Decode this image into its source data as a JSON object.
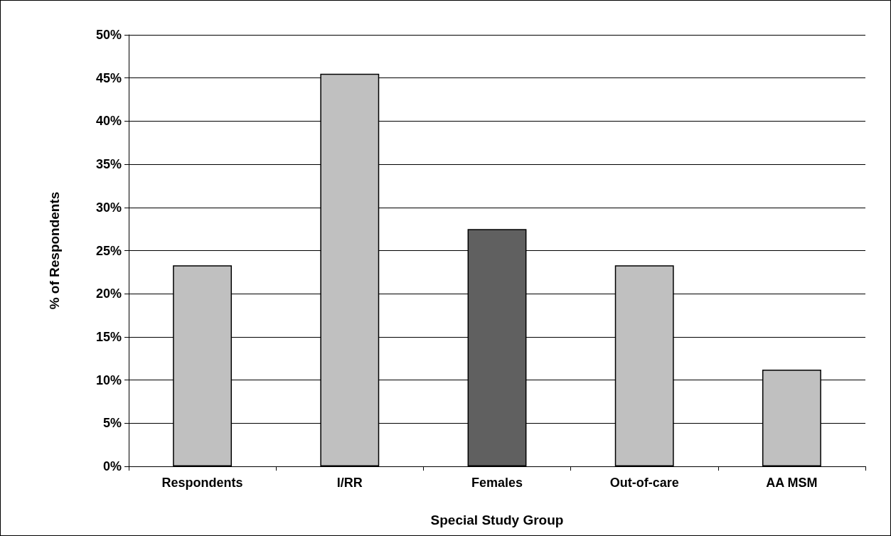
{
  "chart_data": {
    "type": "bar",
    "xlabel": "Special Study Group",
    "ylabel": "% of Respondents",
    "categories": [
      "Respondents",
      "I/RR",
      "Females",
      "Out-of-care",
      "AA MSM"
    ],
    "values": [
      23.3,
      45.5,
      27.5,
      23.3,
      11.2
    ],
    "colors": [
      "#c0c0c0",
      "#c0c0c0",
      "#606060",
      "#c0c0c0",
      "#c0c0c0"
    ],
    "ylim": [
      0,
      50
    ],
    "yticks": [
      {
        "value": 0,
        "label": "0%"
      },
      {
        "value": 5,
        "label": "5%"
      },
      {
        "value": 10,
        "label": "10%"
      },
      {
        "value": 15,
        "label": "15%"
      },
      {
        "value": 20,
        "label": "20%"
      },
      {
        "value": 25,
        "label": "25%"
      },
      {
        "value": 30,
        "label": "30%"
      },
      {
        "value": 35,
        "label": "35%"
      },
      {
        "value": 40,
        "label": "40%"
      },
      {
        "value": 45,
        "label": "45%"
      },
      {
        "value": 50,
        "label": "50%"
      }
    ],
    "grid": "y"
  }
}
